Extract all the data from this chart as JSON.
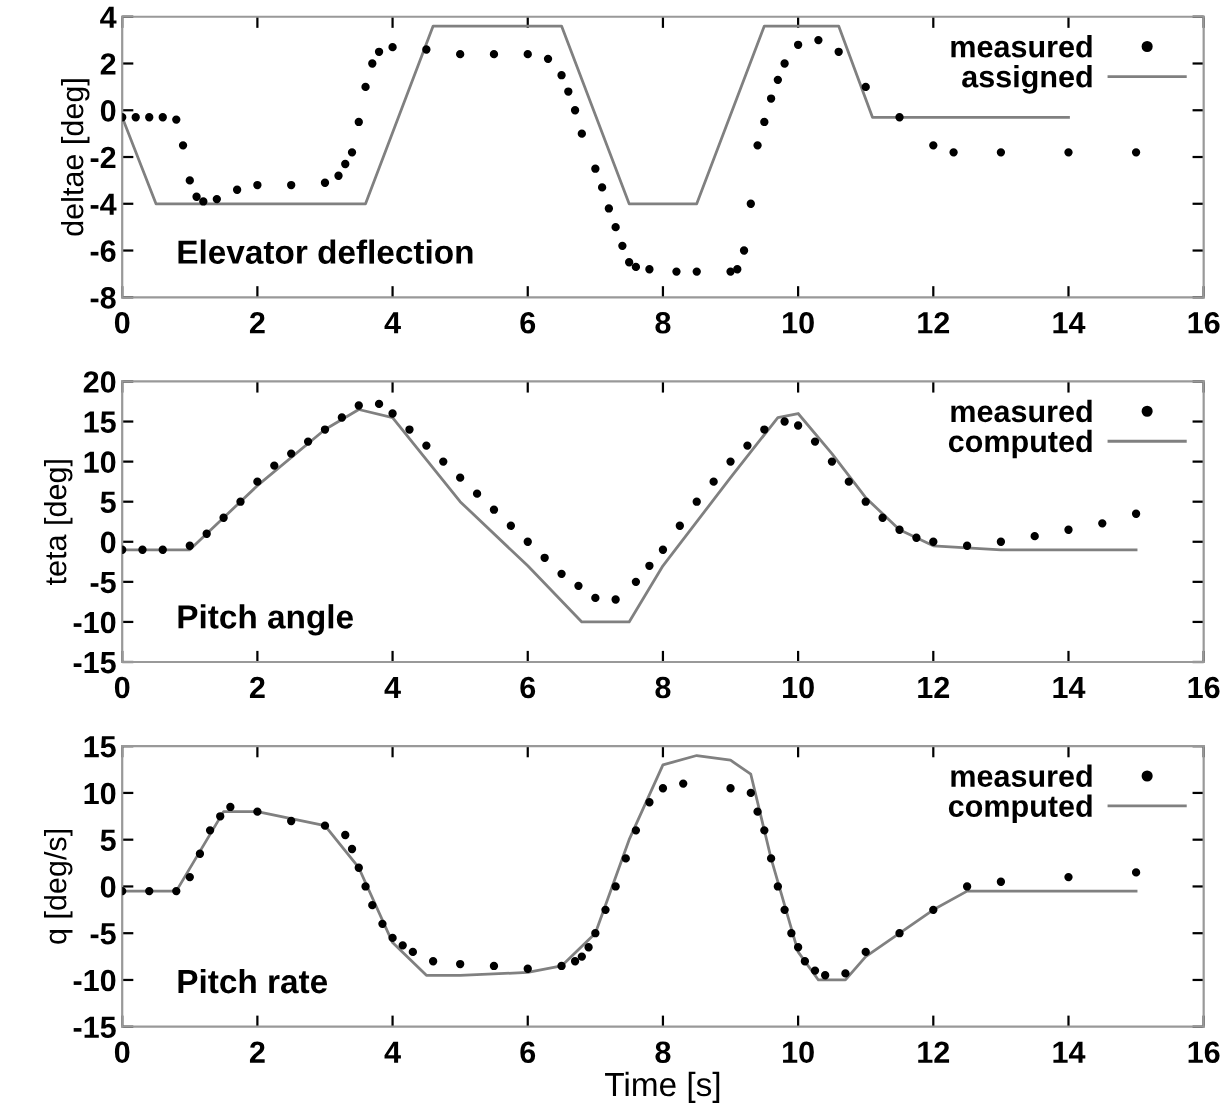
{
  "chart_data": [
    {
      "type": "line",
      "ylabel": "deltae [deg]",
      "xlim": [
        0,
        16
      ],
      "xticks": [
        0,
        2,
        4,
        6,
        8,
        10,
        12,
        14,
        16
      ],
      "ylim": [
        -8,
        4
      ],
      "yticks": [
        -8,
        -6,
        -4,
        -2,
        0,
        2,
        4
      ],
      "legend": "top right",
      "grid": false,
      "annotations": [
        "Elevator deflection"
      ],
      "series": [
        {
          "name": "measured",
          "type": "scatter",
          "marker": "circle",
          "color": "#000000",
          "x": [
            0,
            0.2,
            0.4,
            0.6,
            0.8,
            0.9,
            1.0,
            1.1,
            1.2,
            1.4,
            1.7,
            2.0,
            2.5,
            3.0,
            3.2,
            3.3,
            3.4,
            3.5,
            3.6,
            3.7,
            3.8,
            4.0,
            4.5,
            5.0,
            5.5,
            6.0,
            6.3,
            6.5,
            6.6,
            6.7,
            6.8,
            7.0,
            7.1,
            7.2,
            7.3,
            7.4,
            7.5,
            7.6,
            7.8,
            8.2,
            8.5,
            9.0,
            9.1,
            9.2,
            9.3,
            9.4,
            9.5,
            9.6,
            9.7,
            9.8,
            10.0,
            10.3,
            10.6,
            11.0,
            11.5,
            12.0,
            12.3,
            13.0,
            14.0,
            15.0
          ],
          "values": [
            -0.3,
            -0.3,
            -0.3,
            -0.3,
            -0.4,
            -1.5,
            -3.0,
            -3.7,
            -3.9,
            -3.8,
            -3.4,
            -3.2,
            -3.2,
            -3.1,
            -2.8,
            -2.3,
            -1.8,
            -0.5,
            1.0,
            2.0,
            2.5,
            2.7,
            2.6,
            2.4,
            2.4,
            2.4,
            2.2,
            1.5,
            0.8,
            0,
            -1.0,
            -2.5,
            -3.3,
            -4.2,
            -5.0,
            -5.8,
            -6.5,
            -6.7,
            -6.8,
            -6.9,
            -6.9,
            -6.9,
            -6.8,
            -6.0,
            -4.0,
            -1.5,
            -0.5,
            0.5,
            1.3,
            2.0,
            2.8,
            3.0,
            2.5,
            1.0,
            -0.3,
            -1.5,
            -1.8,
            -1.8,
            -1.8,
            -1.8
          ]
        },
        {
          "name": "assigned",
          "color": "#808080",
          "x": [
            0,
            0.5,
            3.6,
            4.6,
            6.5,
            7.5,
            8.5,
            9.5,
            10.6,
            11.1,
            14
          ],
          "values": [
            -0.3,
            -4,
            -4,
            3.6,
            3.6,
            -4,
            -4,
            3.6,
            3.6,
            -0.3,
            -0.3
          ]
        }
      ]
    },
    {
      "type": "line",
      "ylabel": "teta [deg]",
      "xlim": [
        0,
        16
      ],
      "xticks": [
        0,
        2,
        4,
        6,
        8,
        10,
        12,
        14,
        16
      ],
      "ylim": [
        -15,
        20
      ],
      "yticks": [
        -15,
        -10,
        -5,
        0,
        5,
        10,
        15,
        20
      ],
      "legend": "top right",
      "grid": false,
      "annotations": [
        "Pitch angle"
      ],
      "series": [
        {
          "name": "measured",
          "type": "scatter",
          "marker": "circle",
          "color": "#000000",
          "x": [
            0,
            0.3,
            0.6,
            1.0,
            1.25,
            1.5,
            1.75,
            2.0,
            2.25,
            2.5,
            2.75,
            3.0,
            3.25,
            3.5,
            3.8,
            4.0,
            4.25,
            4.5,
            4.75,
            5.0,
            5.25,
            5.5,
            5.75,
            6.0,
            6.25,
            6.5,
            6.75,
            7.0,
            7.3,
            7.6,
            7.8,
            8.0,
            8.25,
            8.5,
            8.75,
            9.0,
            9.25,
            9.5,
            9.8,
            10.0,
            10.25,
            10.5,
            10.75,
            11.0,
            11.25,
            11.5,
            11.75,
            12.0,
            12.5,
            13.0,
            13.5,
            14.0,
            14.5,
            15.0
          ],
          "values": [
            -1,
            -1,
            -1,
            -0.5,
            1,
            3,
            5,
            7.5,
            9.5,
            11,
            12.5,
            14,
            15.5,
            17,
            17.2,
            16,
            14,
            12,
            10,
            8,
            6,
            4,
            2,
            0,
            -2,
            -4,
            -5.5,
            -7,
            -7.2,
            -5,
            -3,
            -1,
            2,
            5,
            7.5,
            10,
            12,
            14,
            15,
            14.5,
            12.5,
            10,
            7.5,
            5,
            3,
            1.5,
            0.5,
            0,
            -0.5,
            0,
            0.7,
            1.5,
            2.3,
            3.5
          ]
        },
        {
          "name": "computed",
          "color": "#808080",
          "x": [
            0,
            1,
            2,
            3,
            3.5,
            4,
            5,
            6,
            6.8,
            7.5,
            8,
            9,
            9.7,
            10,
            10.5,
            11,
            11.5,
            12,
            13,
            15
          ],
          "values": [
            -1,
            -1,
            7,
            14,
            16.5,
            15.5,
            5,
            -3,
            -10,
            -10,
            -3,
            8,
            15.5,
            16,
            11,
            5.5,
            1.5,
            -0.5,
            -1,
            -1
          ]
        }
      ]
    },
    {
      "type": "line",
      "xlabel": "Time [s]",
      "ylabel": "q [deg/s]",
      "xlim": [
        0,
        16
      ],
      "xticks": [
        0,
        2,
        4,
        6,
        8,
        10,
        12,
        14,
        16
      ],
      "ylim": [
        -15,
        15
      ],
      "yticks": [
        -15,
        -10,
        -5,
        0,
        5,
        10,
        15
      ],
      "legend": "top right",
      "grid": false,
      "annotations": [
        "Pitch rate"
      ],
      "series": [
        {
          "name": "measured",
          "type": "scatter",
          "marker": "circle",
          "color": "#000000",
          "x": [
            0,
            0.4,
            0.8,
            1.0,
            1.15,
            1.3,
            1.45,
            1.6,
            2.0,
            2.5,
            3.0,
            3.3,
            3.4,
            3.5,
            3.6,
            3.7,
            3.85,
            4.0,
            4.15,
            4.3,
            4.6,
            5.0,
            5.5,
            6.0,
            6.5,
            6.7,
            6.8,
            6.9,
            7.0,
            7.15,
            7.3,
            7.45,
            7.6,
            7.8,
            8.0,
            8.3,
            9.0,
            9.3,
            9.4,
            9.5,
            9.6,
            9.7,
            9.8,
            9.9,
            10.0,
            10.1,
            10.25,
            10.4,
            10.7,
            11.0,
            11.5,
            12.0,
            12.5,
            13.0,
            14.0,
            15.0
          ],
          "values": [
            -0.5,
            -0.5,
            -0.5,
            1,
            3.5,
            6,
            7.5,
            8.5,
            8,
            7,
            6.5,
            5.5,
            4,
            2,
            0,
            -2,
            -4,
            -5.5,
            -6.3,
            -7,
            -8,
            -8.3,
            -8.5,
            -8.8,
            -8.5,
            -8,
            -7.5,
            -6.5,
            -5,
            -2.5,
            0,
            3,
            6,
            9,
            10.5,
            11,
            10.5,
            10,
            8,
            6,
            3,
            0,
            -2.5,
            -5,
            -6.5,
            -8,
            -9,
            -9.5,
            -9.3,
            -7,
            -5,
            -2.5,
            0,
            0.5,
            1,
            1.5
          ]
        },
        {
          "name": "computed",
          "color": "#808080",
          "x": [
            0,
            0.8,
            1.5,
            2,
            3,
            3.5,
            4,
            4.5,
            5,
            6,
            6.5,
            7,
            7.5,
            8,
            8.5,
            9,
            9.3,
            9.6,
            10,
            10.3,
            10.7,
            11,
            12,
            12.5,
            13,
            15
          ],
          "values": [
            -0.5,
            -0.5,
            8,
            8,
            6.5,
            2,
            -6,
            -9.5,
            -9.5,
            -9.2,
            -8.5,
            -5,
            5,
            13,
            14,
            13.5,
            12,
            3,
            -7,
            -10,
            -10,
            -7.5,
            -2.5,
            -0.5,
            -0.5,
            -0.5
          ]
        }
      ]
    }
  ]
}
